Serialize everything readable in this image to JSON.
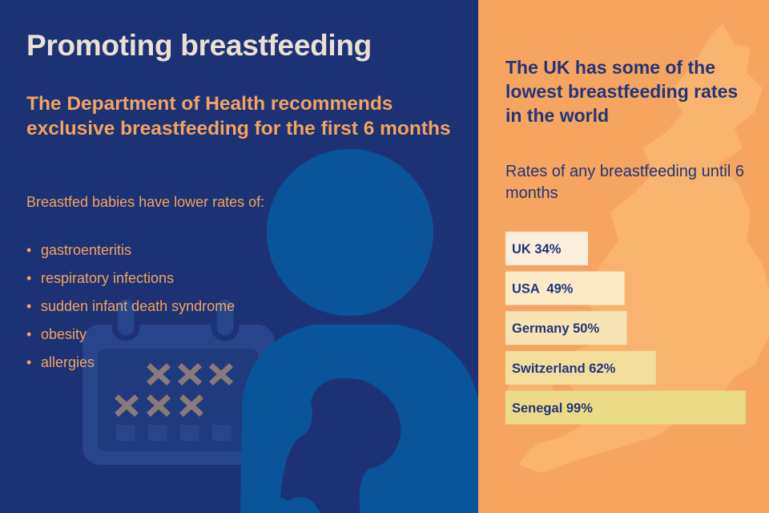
{
  "title": "Promoting breastfeeding",
  "subtitle": "The Department of Health recommends exclusive breastfeeding for the first 6 months",
  "benefits": {
    "intro": "Breastfed babies have lower rates of:",
    "items": [
      "gastroenteritis",
      "respiratory infections",
      "sudden infant death syndrome",
      "obesity",
      "allergies"
    ]
  },
  "right_heading": "The UK has some of the lowest breastfeeding rates in the world",
  "colors": {
    "left_background": "#1d3275",
    "right_background": "#f5a560",
    "bars": [
      "#fbeedd",
      "#faeac8",
      "#f7e4b4",
      "#f2de9c",
      "#ecdb86"
    ]
  },
  "icons": [
    "calendar-icon",
    "mother-baby-icon",
    "uk-map-icon"
  ],
  "chart_data": {
    "type": "bar",
    "orientation": "horizontal",
    "title": "Rates of any breastfeeding until 6 months",
    "categories": [
      "UK",
      "USA",
      "Germany",
      "Switzerland",
      "Senegal"
    ],
    "values": [
      34,
      49,
      50,
      62,
      99
    ],
    "labels": [
      "UK 34%",
      "USA  49%",
      "Germany 50%",
      "Switzerland 62%",
      "Senegal 99%"
    ],
    "unit": "%",
    "xlim": [
      0,
      100
    ],
    "grid": false,
    "legend": "none"
  }
}
